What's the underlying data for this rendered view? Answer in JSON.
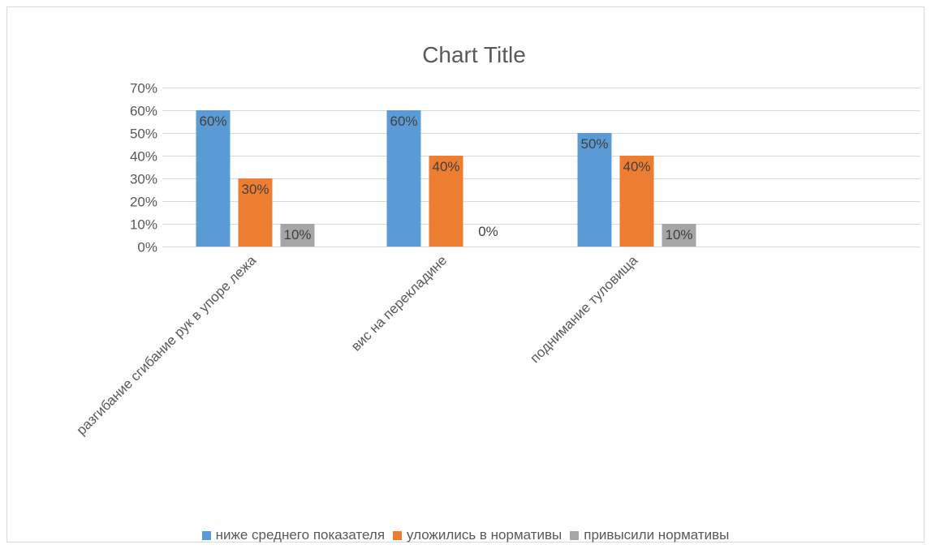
{
  "chart_data": {
    "type": "bar",
    "title": "Chart Title",
    "categories": [
      "разгибание сгибание рук в упоре лежа",
      "вис на перекладине",
      "поднимание туловища"
    ],
    "series": [
      {
        "name": "ниже среднего показателя",
        "color": "#5b9bd5",
        "values": [
          60,
          60,
          50
        ],
        "labels": [
          "60%",
          "60%",
          "50%"
        ]
      },
      {
        "name": "уложились в нормативы",
        "color": "#ed7d31",
        "values": [
          30,
          40,
          40
        ],
        "labels": [
          "30%",
          "40%",
          "40%"
        ]
      },
      {
        "name": "привысили нормативы",
        "color": "#a5a5a5",
        "values": [
          10,
          0,
          10
        ],
        "labels": [
          "10%",
          "0%",
          "10%"
        ]
      }
    ],
    "yticks": [
      "0%",
      "10%",
      "20%",
      "30%",
      "40%",
      "50%",
      "60%",
      "70%"
    ],
    "ylim": [
      0,
      70
    ],
    "grid": true,
    "legend_position": "bottom",
    "xlabel": "",
    "ylabel": ""
  }
}
